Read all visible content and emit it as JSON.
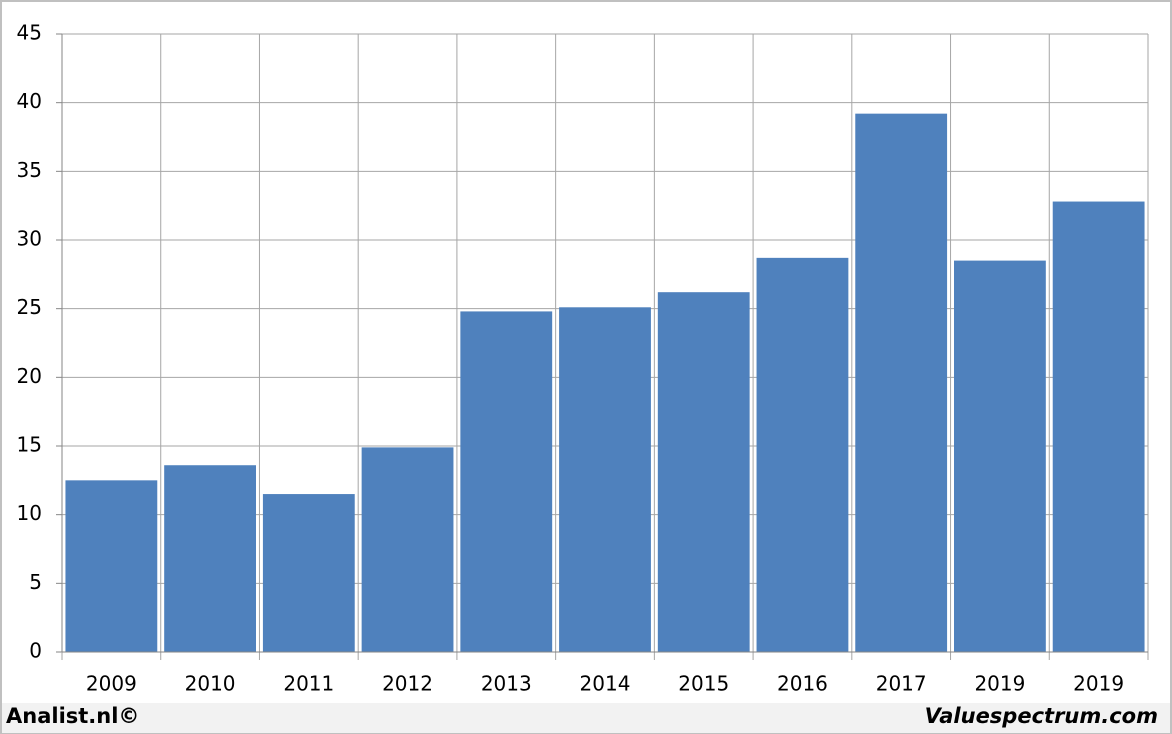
{
  "chart_data": {
    "type": "bar",
    "categories": [
      "2009",
      "2010",
      "2011",
      "2012",
      "2013",
      "2014",
      "2015",
      "2016",
      "2017",
      "2019",
      "2019"
    ],
    "values": [
      12.5,
      13.6,
      11.5,
      14.9,
      24.8,
      25.1,
      26.2,
      28.7,
      39.2,
      28.5,
      32.8
    ],
    "color": "#4f81bd",
    "ylim": [
      0,
      45
    ],
    "yticks": [
      0,
      5,
      10,
      15,
      20,
      25,
      30,
      35,
      40,
      45
    ],
    "grid": true,
    "source_left": "Analist.nl©",
    "source_right": "Valuespectrum.com"
  }
}
